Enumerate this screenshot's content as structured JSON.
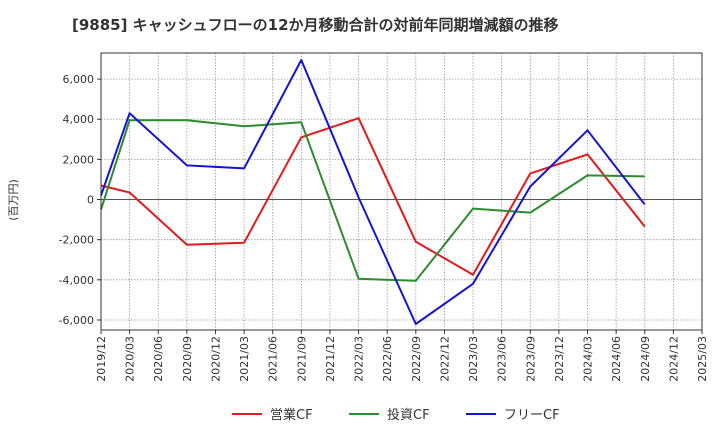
{
  "chart_data": {
    "type": "line",
    "title": "[9885]  キャッシュフローの12か月移動合計の対前年同期増減額の推移",
    "xlabel": "",
    "ylabel": "(百万円)",
    "ylim": [
      -6500,
      7300
    ],
    "yticks": [
      6000,
      4000,
      2000,
      0,
      -2000,
      -4000,
      -6000
    ],
    "ytick_labels": [
      "6,000",
      "4,000",
      "2,000",
      "0",
      "-2,000",
      "-4,000",
      "-6,000"
    ],
    "x": [
      "2019/12",
      "2020/03",
      "2020/06",
      "2020/09",
      "2020/12",
      "2021/03",
      "2021/06",
      "2021/09",
      "2021/12",
      "2022/03",
      "2022/06",
      "2022/09",
      "2022/12",
      "2023/03",
      "2023/06",
      "2023/09",
      "2023/12",
      "2024/03",
      "2024/06",
      "2024/09",
      "2024/12",
      "2025/03"
    ],
    "grid": true,
    "legend_position": "bottom",
    "series": [
      {
        "name": "営業CF",
        "color": "#e31a1c",
        "points": [
          [
            "2019/12",
            700
          ],
          [
            "2020/03",
            350
          ],
          [
            "2020/09",
            -2250
          ],
          [
            "2021/03",
            -2150
          ],
          [
            "2021/09",
            3100
          ],
          [
            "2022/03",
            4050
          ],
          [
            "2022/09",
            -2100
          ],
          [
            "2023/03",
            -3750
          ],
          [
            "2023/09",
            1300
          ],
          [
            "2024/03",
            2250
          ],
          [
            "2024/09",
            -1350
          ]
        ]
      },
      {
        "name": "投資CF",
        "color": "#2e8b2e",
        "points": [
          [
            "2019/12",
            -500
          ],
          [
            "2020/03",
            3950
          ],
          [
            "2020/09",
            3950
          ],
          [
            "2021/03",
            3650
          ],
          [
            "2021/09",
            3850
          ],
          [
            "2022/03",
            -3950
          ],
          [
            "2022/09",
            -4050
          ],
          [
            "2023/03",
            -450
          ],
          [
            "2023/09",
            -650
          ],
          [
            "2024/03",
            1200
          ],
          [
            "2024/09",
            1150
          ]
        ]
      },
      {
        "name": "フリーCF",
        "color": "#1515d0",
        "points": [
          [
            "2019/12",
            200
          ],
          [
            "2020/03",
            4300
          ],
          [
            "2020/09",
            1700
          ],
          [
            "2021/03",
            1550
          ],
          [
            "2021/09",
            6950
          ],
          [
            "2022/03",
            100
          ],
          [
            "2022/09",
            -6200
          ],
          [
            "2023/03",
            -4200
          ],
          [
            "2023/09",
            650
          ],
          [
            "2024/03",
            3450
          ],
          [
            "2024/09",
            -250
          ]
        ]
      }
    ]
  }
}
